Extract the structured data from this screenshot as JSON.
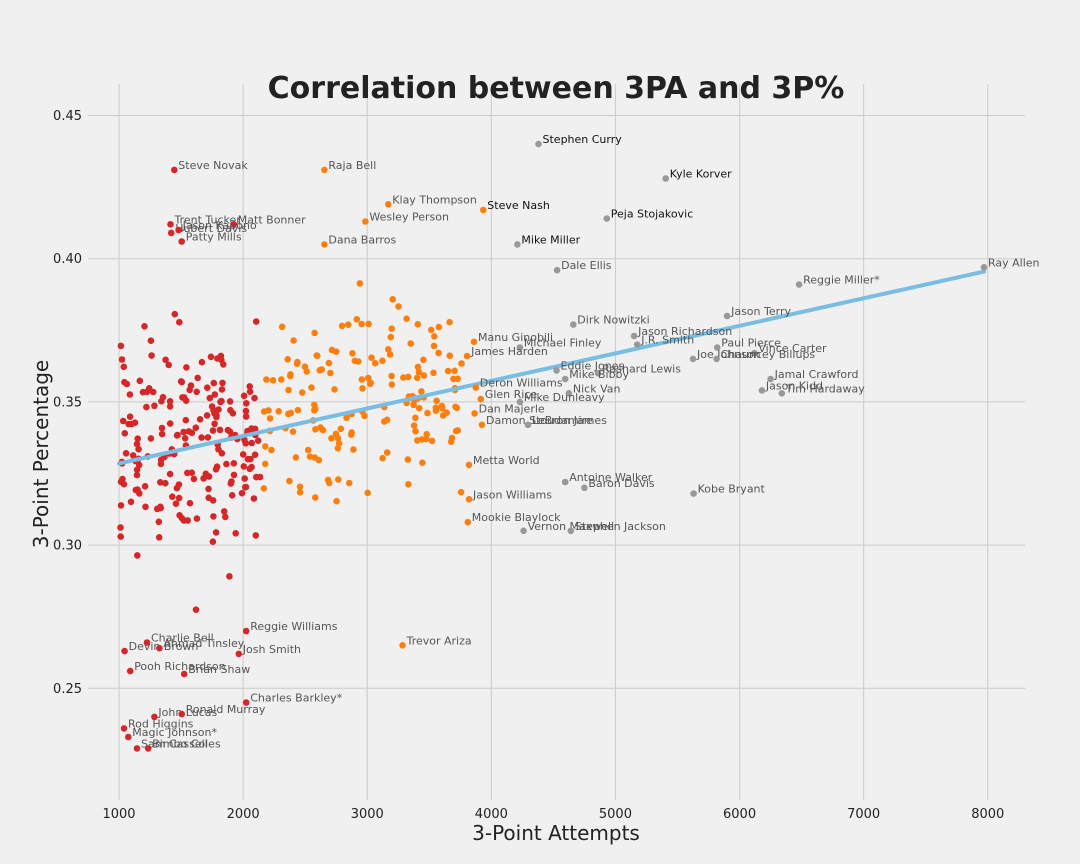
{
  "chart_data": {
    "type": "scatter",
    "title": "Correlation between 3PA and 3P%",
    "xlabel": "3-Point Attempts",
    "ylabel": "3-Point Percentage",
    "xlim": [
      750,
      8300
    ],
    "ylim": [
      0.211,
      0.461
    ],
    "xticks": [
      1000,
      2000,
      3000,
      4000,
      5000,
      6000,
      7000,
      8000
    ],
    "xtick_labels": [
      "1000",
      "2000",
      "3000",
      "4000",
      "5000",
      "6000",
      "7000",
      "8000"
    ],
    "yticks": [
      0.25,
      0.3,
      0.35,
      0.4,
      0.45
    ],
    "ytick_labels": [
      "0.25",
      "0.30",
      "0.35",
      "0.40",
      "0.45"
    ],
    "grid": true,
    "colors": {
      "red": "#d62728",
      "orange": "#ff7f0e",
      "gray": "#999999",
      "trend": "#79bde3",
      "background": "#f0f0f0",
      "grid": "#cbcbcb"
    },
    "trendline": {
      "x": [
        1000,
        7970
      ],
      "y": [
        0.3285,
        0.3955
      ]
    },
    "labeled_points": [
      {
        "name": "Steve Novak",
        "x": 1445,
        "y": 0.431,
        "group": "red"
      },
      {
        "name": "Raja Bell",
        "x": 2655,
        "y": 0.431,
        "group": "orange"
      },
      {
        "name": "Stephen Curry",
        "x": 4380,
        "y": 0.44,
        "group": "gray",
        "dark": true
      },
      {
        "name": "Kyle Korver",
        "x": 5405,
        "y": 0.428,
        "group": "gray",
        "dark": true
      },
      {
        "name": "Klay Thompson",
        "x": 3170,
        "y": 0.419,
        "group": "orange"
      },
      {
        "name": "Steve Nash",
        "x": 3935,
        "y": 0.417,
        "group": "orange",
        "dark": true
      },
      {
        "name": "Wesley Person",
        "x": 2985,
        "y": 0.413,
        "group": "orange"
      },
      {
        "name": "Peja Stojakovic",
        "x": 4930,
        "y": 0.414,
        "group": "gray",
        "dark": true
      },
      {
        "name": "Trent Tucker",
        "x": 1415,
        "y": 0.412,
        "group": "red"
      },
      {
        "name": "Matt Bonner",
        "x": 1925,
        "y": 0.412,
        "group": "red"
      },
      {
        "name": "Hubert Davis",
        "x": 1420,
        "y": 0.409,
        "group": "red"
      },
      {
        "name": "Jason Kapono",
        "x": 1480,
        "y": 0.41,
        "group": "red"
      },
      {
        "name": "Patty Mills",
        "x": 1505,
        "y": 0.406,
        "group": "red"
      },
      {
        "name": "Dana Barros",
        "x": 2655,
        "y": 0.405,
        "group": "orange"
      },
      {
        "name": "Mike Miller",
        "x": 4210,
        "y": 0.405,
        "group": "gray",
        "dark": true
      },
      {
        "name": "Dale Ellis",
        "x": 4530,
        "y": 0.396,
        "group": "gray"
      },
      {
        "name": "Ray Allen",
        "x": 7970,
        "y": 0.397,
        "group": "gray"
      },
      {
        "name": "Reggie Miller*",
        "x": 6480,
        "y": 0.391,
        "group": "gray"
      },
      {
        "name": "Jason Terry",
        "x": 5900,
        "y": 0.38,
        "group": "gray"
      },
      {
        "name": "Dirk Nowitzki",
        "x": 4660,
        "y": 0.377,
        "group": "gray"
      },
      {
        "name": "Jason Richardson",
        "x": 5150,
        "y": 0.373,
        "group": "gray"
      },
      {
        "name": "J.R. Smith",
        "x": 5175,
        "y": 0.37,
        "group": "gray"
      },
      {
        "name": "Manu Ginobili",
        "x": 3860,
        "y": 0.371,
        "group": "orange"
      },
      {
        "name": "Michael Finley",
        "x": 4230,
        "y": 0.369,
        "group": "gray"
      },
      {
        "name": "James Harden",
        "x": 3805,
        "y": 0.366,
        "group": "orange"
      },
      {
        "name": "Paul Pierce",
        "x": 5820,
        "y": 0.369,
        "group": "gray"
      },
      {
        "name": "Vince Carter",
        "x": 6120,
        "y": 0.367,
        "group": "gray"
      },
      {
        "name": "Joe Johnson",
        "x": 5625,
        "y": 0.365,
        "group": "gray"
      },
      {
        "name": "Chauncey Billups",
        "x": 5815,
        "y": 0.365,
        "group": "gray"
      },
      {
        "name": "Eddie Jones",
        "x": 4525,
        "y": 0.361,
        "group": "gray"
      },
      {
        "name": "Rashard Lewis",
        "x": 4860,
        "y": 0.36,
        "group": "gray"
      },
      {
        "name": "Mike Bibby",
        "x": 4595,
        "y": 0.358,
        "group": "gray"
      },
      {
        "name": "Jamal Crawford",
        "x": 6250,
        "y": 0.358,
        "group": "gray"
      },
      {
        "name": "Deron Williams",
        "x": 3875,
        "y": 0.355,
        "group": "orange"
      },
      {
        "name": "Jason Kidd",
        "x": 6180,
        "y": 0.354,
        "group": "gray"
      },
      {
        "name": "Tim Hardaway",
        "x": 6340,
        "y": 0.353,
        "group": "gray"
      },
      {
        "name": "Glen Rice",
        "x": 3915,
        "y": 0.351,
        "group": "orange"
      },
      {
        "name": "Nick Van",
        "x": 4625,
        "y": 0.353,
        "group": "gray"
      },
      {
        "name": "Mike Dunleavy",
        "x": 4230,
        "y": 0.35,
        "group": "gray"
      },
      {
        "name": "Dan Majerle",
        "x": 3865,
        "y": 0.346,
        "group": "orange"
      },
      {
        "name": "Damon Stoudamire",
        "x": 3925,
        "y": 0.342,
        "group": "orange"
      },
      {
        "name": "LeBron James",
        "x": 4295,
        "y": 0.342,
        "group": "gray"
      },
      {
        "name": "Metta World",
        "x": 3820,
        "y": 0.328,
        "group": "orange"
      },
      {
        "name": "Antoine Walker",
        "x": 4595,
        "y": 0.322,
        "group": "gray"
      },
      {
        "name": "Baron Davis",
        "x": 4750,
        "y": 0.32,
        "group": "gray"
      },
      {
        "name": "Kobe Bryant",
        "x": 5630,
        "y": 0.318,
        "group": "gray"
      },
      {
        "name": "Jason Williams",
        "x": 3820,
        "y": 0.316,
        "group": "orange"
      },
      {
        "name": "Mookie Blaylock",
        "x": 3810,
        "y": 0.308,
        "group": "orange"
      },
      {
        "name": "Vernon Maxwell",
        "x": 4260,
        "y": 0.305,
        "group": "gray"
      },
      {
        "name": "Stephen Jackson",
        "x": 4640,
        "y": 0.305,
        "group": "gray"
      },
      {
        "name": "Reggie Williams",
        "x": 2025,
        "y": 0.27,
        "group": "red"
      },
      {
        "name": "Trevor Ariza",
        "x": 3285,
        "y": 0.265,
        "group": "orange"
      },
      {
        "name": "Charlie Bell",
        "x": 1225,
        "y": 0.266,
        "group": "red"
      },
      {
        "name": "Ahmad Tinsley",
        "x": 1325,
        "y": 0.264,
        "group": "red"
      },
      {
        "name": "Devin Brown",
        "x": 1045,
        "y": 0.263,
        "group": "red"
      },
      {
        "name": "Josh Smith",
        "x": 1965,
        "y": 0.262,
        "group": "red"
      },
      {
        "name": "Pooh Richardson",
        "x": 1090,
        "y": 0.256,
        "group": "red"
      },
      {
        "name": "Brian Shaw",
        "x": 1525,
        "y": 0.255,
        "group": "red"
      },
      {
        "name": "Charles Barkley*",
        "x": 2025,
        "y": 0.245,
        "group": "red"
      },
      {
        "name": "John Lucas",
        "x": 1285,
        "y": 0.24,
        "group": "red"
      },
      {
        "name": "Ronald Murray",
        "x": 1505,
        "y": 0.241,
        "group": "red"
      },
      {
        "name": "Rod Higgins",
        "x": 1040,
        "y": 0.236,
        "group": "red"
      },
      {
        "name": "Magic Johnson*",
        "x": 1075,
        "y": 0.233,
        "group": "red"
      },
      {
        "name": "Sam Cassell",
        "x": 1145,
        "y": 0.229,
        "group": "red"
      },
      {
        "name": "Bimbo Coles",
        "x": 1235,
        "y": 0.229,
        "group": "red"
      }
    ]
  }
}
